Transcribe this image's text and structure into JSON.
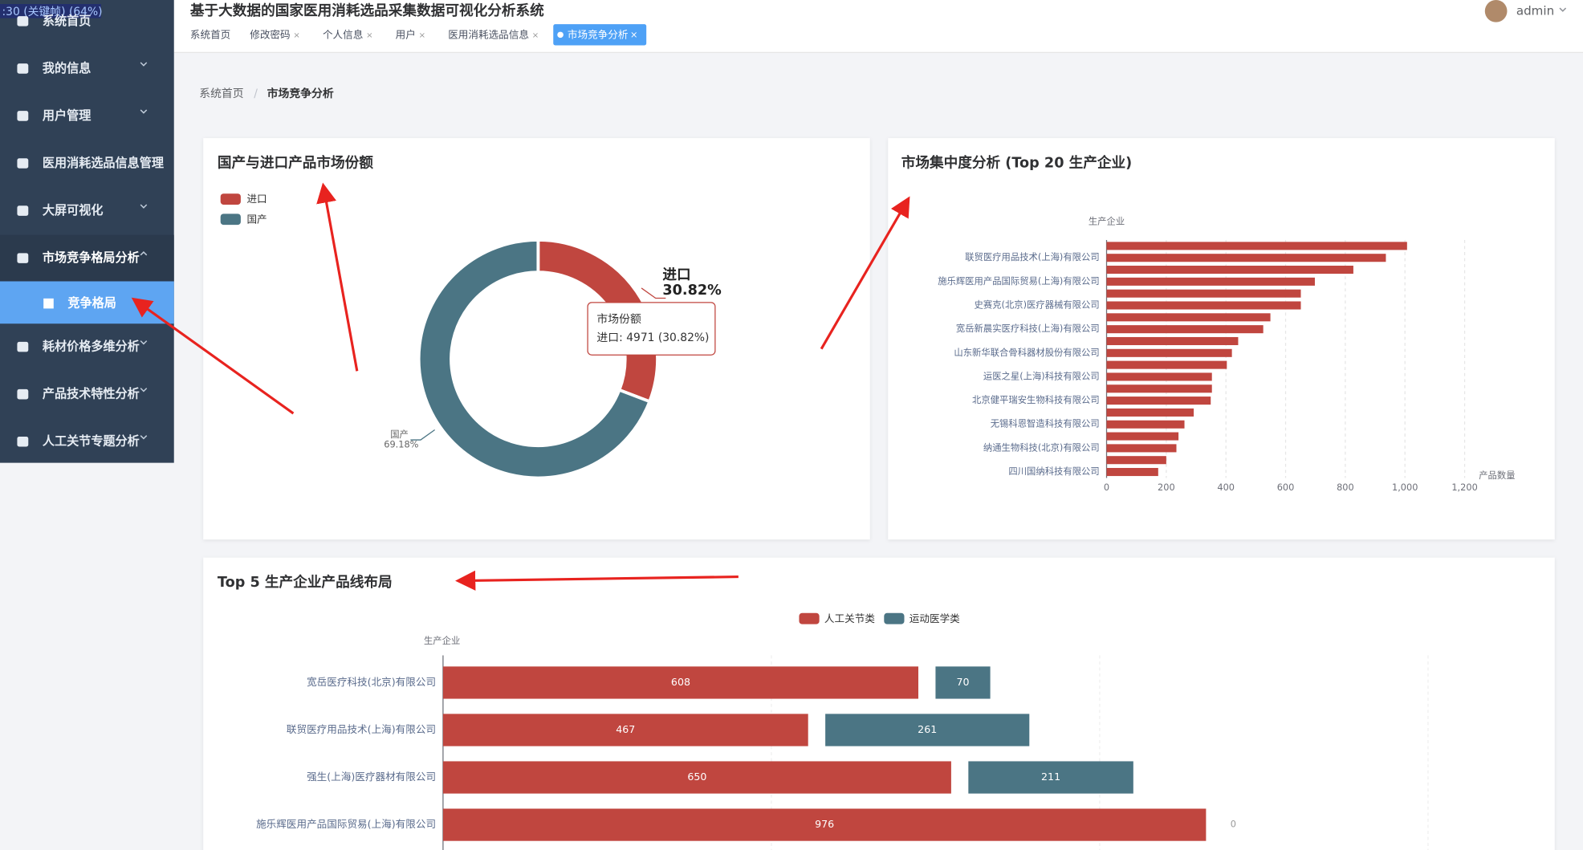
{
  "overlay_text": ":30 (关键帧) (64%)",
  "sidebar": {
    "menu": [
      {
        "label": "系统首页"
      },
      {
        "label": "我的信息",
        "arrow": "down"
      },
      {
        "label": "用户管理",
        "arrow": "down"
      },
      {
        "label": "医用消耗选品信息管理"
      },
      {
        "label": "大屏可视化",
        "arrow": "down"
      },
      {
        "label": "市场竞争格局分析",
        "arrow": "up",
        "children": [
          {
            "label": "竞争格局",
            "active": true
          }
        ]
      },
      {
        "label": "耗材价格多维分析",
        "arrow": "down"
      },
      {
        "label": "产品技术特性分析",
        "arrow": "down"
      },
      {
        "label": "人工关节专题分析",
        "arrow": "down"
      }
    ]
  },
  "header": {
    "title": "基于大数据的国家医用消耗选品采集数据可视化分析系统",
    "user": "admin",
    "tabs": [
      {
        "label": "系统首页"
      },
      {
        "label": "修改密码",
        "closable": true
      },
      {
        "label": "个人信息",
        "closable": true
      },
      {
        "label": "用户",
        "closable": true
      },
      {
        "label": "医用消耗选品信息",
        "closable": true
      },
      {
        "label": "市场竞争分析",
        "closable": true,
        "active": true
      }
    ]
  },
  "breadcrumb": [
    "系统首页",
    "市场竞争分析"
  ],
  "chart_data": [
    {
      "type": "pie",
      "title": "国产与进口产品市场份额",
      "categories": [
        "进口",
        "国产"
      ],
      "values": [
        30.82,
        69.18
      ],
      "value_labels": [
        "30.82%",
        "69.18%"
      ],
      "colors": [
        "#c0463f",
        "#4b7584"
      ],
      "legend": "top-left",
      "tooltip": {
        "title": "市场份额",
        "text": "进口: 4971 (30.82%)"
      }
    },
    {
      "type": "bar",
      "orientation": "horizontal",
      "title": "市场集中度分析 (Top 20 生产企业)",
      "ylabel": "生产企业",
      "xlabel": "产品数量",
      "categories": [
        null,
        "联贸医疗用品技术(上海)有限公司",
        null,
        "施乐辉医用产品国际贸易(上海)有限公司",
        null,
        "史赛克(北京)医疗器械有限公司",
        null,
        "宽岳新晨实医疗科技(上海)有限公司",
        null,
        "山东新华联合骨科器材股份有限公司",
        null,
        "运医之星(上海)科技有限公司",
        null,
        "北京健平瑞安生物科技有限公司",
        null,
        "无锡科恩智造科技有限公司",
        null,
        "纳通生物科技(北京)有限公司",
        null,
        "四川国纳科技有限公司"
      ],
      "values": [
        1007,
        936,
        827,
        698,
        651,
        651,
        549,
        525,
        441,
        420,
        403,
        353,
        353,
        349,
        292,
        261,
        241,
        234,
        200,
        173
      ],
      "color": "#c0463f",
      "xlim": [
        0,
        1200
      ],
      "xticks": [
        0,
        200,
        400,
        600,
        800,
        {
          "value": 1000,
          "label": "1,000"
        },
        {
          "value": 1200,
          "label": "1,200"
        }
      ],
      "grid": true
    },
    {
      "type": "grouped_bar",
      "orientation": "horizontal",
      "title": "Top 5 生产企业产品线布局",
      "ylabel": "生产企业",
      "categories": [
        "宽岳医疗科技(北京)有限公司",
        "联贸医疗用品技术(上海)有限公司",
        "强生(上海)医疗器材有限公司",
        "施乐辉医用产品国际贸易(上海)有限公司"
      ],
      "series": [
        {
          "name": "人工关节类",
          "color": "#c0463f",
          "values": [
            608,
            467,
            650,
            976
          ]
        },
        {
          "name": "运动医学类",
          "color": "#4b7584",
          "values": [
            70,
            261,
            211,
            0
          ]
        }
      ],
      "xlim": [
        0,
        1400
      ],
      "legend": "top-center",
      "grid": true
    }
  ]
}
